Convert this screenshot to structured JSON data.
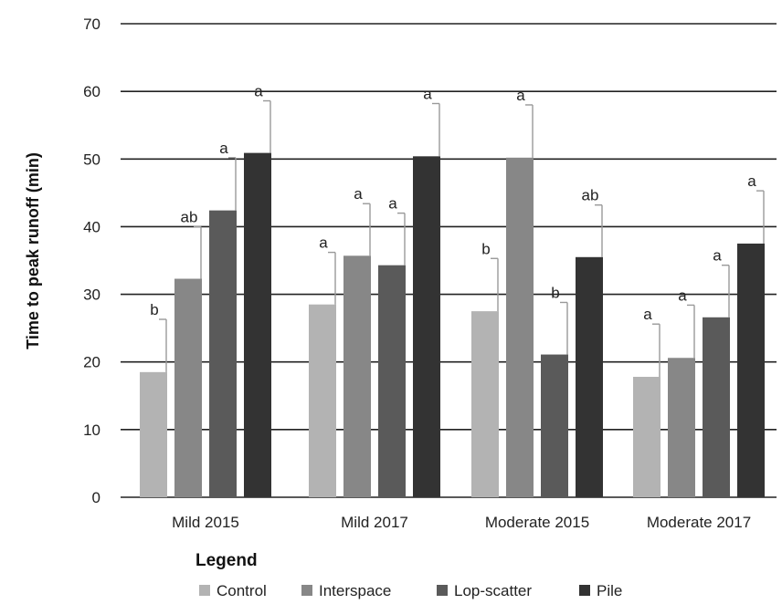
{
  "chart_data": {
    "type": "bar",
    "title": "",
    "xlabel": "",
    "ylabel": "Time to peak runoff (min)",
    "ylim": [
      0,
      70
    ],
    "yticks": [
      0,
      10,
      20,
      30,
      40,
      50,
      60,
      70
    ],
    "grid": "horizontal",
    "categories": [
      "Mild 2015",
      "Mild 2017",
      "Moderate 2015",
      "Moderate 2017"
    ],
    "series": [
      {
        "name": "Control",
        "color": "#b3b3b3",
        "values": [
          18.5,
          28.5,
          27.5,
          17.8
        ],
        "errors": [
          7.8,
          7.7,
          7.8,
          7.8
        ],
        "letters": [
          "b",
          "a",
          "b",
          "a"
        ]
      },
      {
        "name": "Interspace",
        "color": "#878787",
        "values": [
          32.3,
          35.7,
          50.2,
          20.6
        ],
        "errors": [
          7.7,
          7.7,
          7.8,
          7.8
        ],
        "letters": [
          "ab",
          "a",
          "a",
          "a"
        ]
      },
      {
        "name": "Lop-scatter",
        "color": "#5a5a5a",
        "values": [
          42.4,
          34.3,
          21.1,
          26.6
        ],
        "errors": [
          7.8,
          7.7,
          7.7,
          7.7
        ],
        "letters": [
          "a",
          "a",
          "b",
          "a"
        ]
      },
      {
        "name": "Pile",
        "color": "#333333",
        "values": [
          50.9,
          50.4,
          35.5,
          37.5
        ],
        "errors": [
          7.7,
          7.8,
          7.7,
          7.8
        ],
        "letters": [
          "a",
          "a",
          "ab",
          "a"
        ]
      }
    ],
    "legend": {
      "title": "Legend",
      "placement": "bottom"
    }
  }
}
